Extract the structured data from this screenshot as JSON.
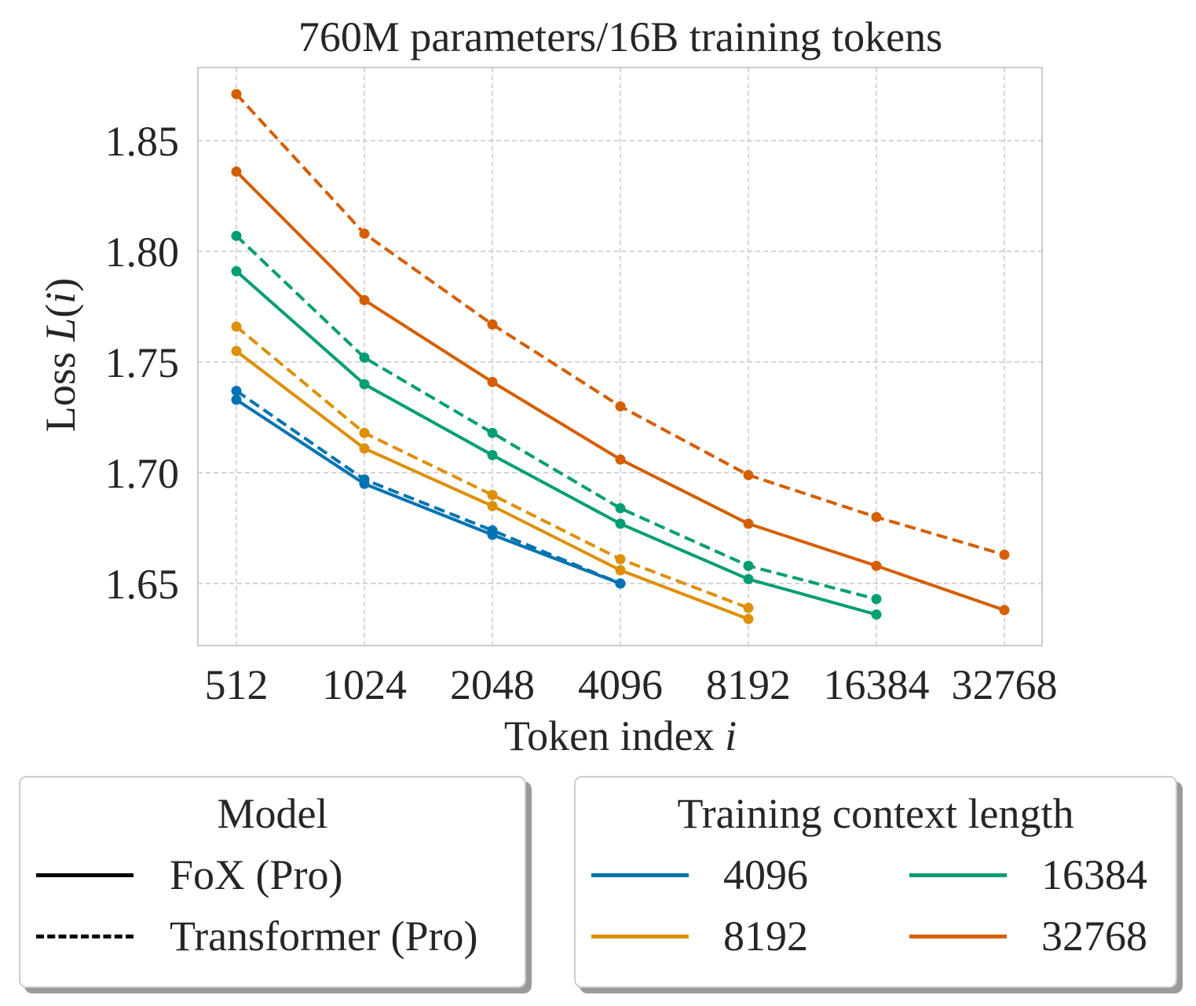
{
  "chart_data": {
    "type": "line",
    "title": "760M parameters/16B training tokens",
    "xlabel_prefix": "Token index ",
    "xlabel_var": "i",
    "ylabel_prefix": "Loss ",
    "ylabel_var": "L",
    "ylabel_arg": "i",
    "x": [
      512,
      1024,
      2048,
      4096,
      8192,
      16384,
      32768
    ],
    "x_tick_labels": [
      "512",
      "1024",
      "2048",
      "4096",
      "8192",
      "16384",
      "32768"
    ],
    "x_scale": "log2",
    "ylim": [
      1.622,
      1.883
    ],
    "y_ticks": [
      1.65,
      1.7,
      1.75,
      1.8,
      1.85
    ],
    "y_tick_labels": [
      "1.65",
      "1.70",
      "1.75",
      "1.80",
      "1.85"
    ],
    "grid": true,
    "series": [
      {
        "name": "FoX (Pro) 4096",
        "model": "FoX (Pro)",
        "context": "4096",
        "color": "#0173b2",
        "dash": "solid",
        "values": [
          1.733,
          1.695,
          1.672,
          1.65,
          null,
          null,
          null
        ]
      },
      {
        "name": "Transformer (Pro) 4096",
        "model": "Transformer (Pro)",
        "context": "4096",
        "color": "#0173b2",
        "dash": "dashed",
        "values": [
          1.737,
          1.697,
          1.674,
          1.65,
          null,
          null,
          null
        ]
      },
      {
        "name": "FoX (Pro) 8192",
        "model": "FoX (Pro)",
        "context": "8192",
        "color": "#de8f05",
        "dash": "solid",
        "values": [
          1.755,
          1.711,
          1.685,
          1.656,
          1.634,
          null,
          null
        ]
      },
      {
        "name": "Transformer (Pro) 8192",
        "model": "Transformer (Pro)",
        "context": "8192",
        "color": "#de8f05",
        "dash": "dashed",
        "values": [
          1.766,
          1.718,
          1.69,
          1.661,
          1.639,
          null,
          null
        ]
      },
      {
        "name": "FoX (Pro) 16384",
        "model": "FoX (Pro)",
        "context": "16384",
        "color": "#029e73",
        "dash": "solid",
        "values": [
          1.791,
          1.74,
          1.708,
          1.677,
          1.652,
          1.636,
          null
        ]
      },
      {
        "name": "Transformer (Pro) 16384",
        "model": "Transformer (Pro)",
        "context": "16384",
        "color": "#029e73",
        "dash": "dashed",
        "values": [
          1.807,
          1.752,
          1.718,
          1.684,
          1.658,
          1.643,
          null
        ]
      },
      {
        "name": "FoX (Pro) 32768",
        "model": "FoX (Pro)",
        "context": "32768",
        "color": "#d55e00",
        "dash": "solid",
        "values": [
          1.836,
          1.778,
          1.741,
          1.706,
          1.677,
          1.658,
          1.638
        ]
      },
      {
        "name": "Transformer (Pro) 32768",
        "model": "Transformer (Pro)",
        "context": "32768",
        "color": "#d55e00",
        "dash": "dashed",
        "values": [
          1.871,
          1.808,
          1.767,
          1.73,
          1.699,
          1.68,
          1.663
        ]
      }
    ],
    "legends": {
      "model": {
        "title": "Model",
        "placement": "bottom-left",
        "entries": [
          {
            "label": "FoX (Pro)",
            "dash": "solid",
            "color": "#000000"
          },
          {
            "label": "Transformer (Pro)",
            "dash": "dashed",
            "color": "#000000"
          }
        ]
      },
      "context": {
        "title": "Training context length",
        "placement": "bottom-right",
        "entries": [
          {
            "label": "4096",
            "color": "#0173b2"
          },
          {
            "label": "8192",
            "color": "#de8f05"
          },
          {
            "label": "16384",
            "color": "#029e73"
          },
          {
            "label": "32768",
            "color": "#d55e00"
          }
        ]
      }
    }
  }
}
